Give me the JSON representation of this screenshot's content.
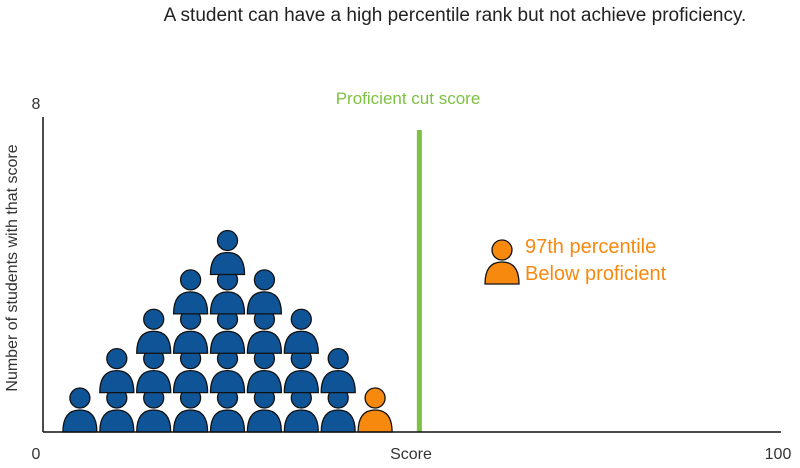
{
  "colors": {
    "student": "#0f5496",
    "highlight": "#f7890f",
    "cut_line": "#7dc242",
    "outline": "#111111",
    "axis": "#111111",
    "text": "#222222"
  },
  "chart_data": {
    "type": "scatter",
    "title": "A student can have a high percentile rank but not achieve proficiency.",
    "xlabel": "Score",
    "ylabel": "Number of students with that score",
    "xlim": [
      0,
      100
    ],
    "ylim": [
      0,
      8
    ],
    "x_tick_labels": [
      "0",
      "100"
    ],
    "y_tick_labels": [
      "8"
    ],
    "grid": false,
    "marker": "person-icon",
    "columns": [
      {
        "x": 5,
        "count": 1
      },
      {
        "x": 10,
        "count": 2
      },
      {
        "x": 15,
        "count": 3
      },
      {
        "x": 20,
        "count": 4
      },
      {
        "x": 25,
        "count": 5
      },
      {
        "x": 30,
        "count": 4
      },
      {
        "x": 35,
        "count": 3
      },
      {
        "x": 40,
        "count": 2
      },
      {
        "x": 45,
        "count": 1
      }
    ],
    "highlighted_student": {
      "x": 45,
      "y": 1
    },
    "cut_score": {
      "x": 51,
      "label": "Proficient cut score"
    },
    "annotation": {
      "lines": [
        "97th percentile",
        "Below proficient"
      ]
    }
  }
}
